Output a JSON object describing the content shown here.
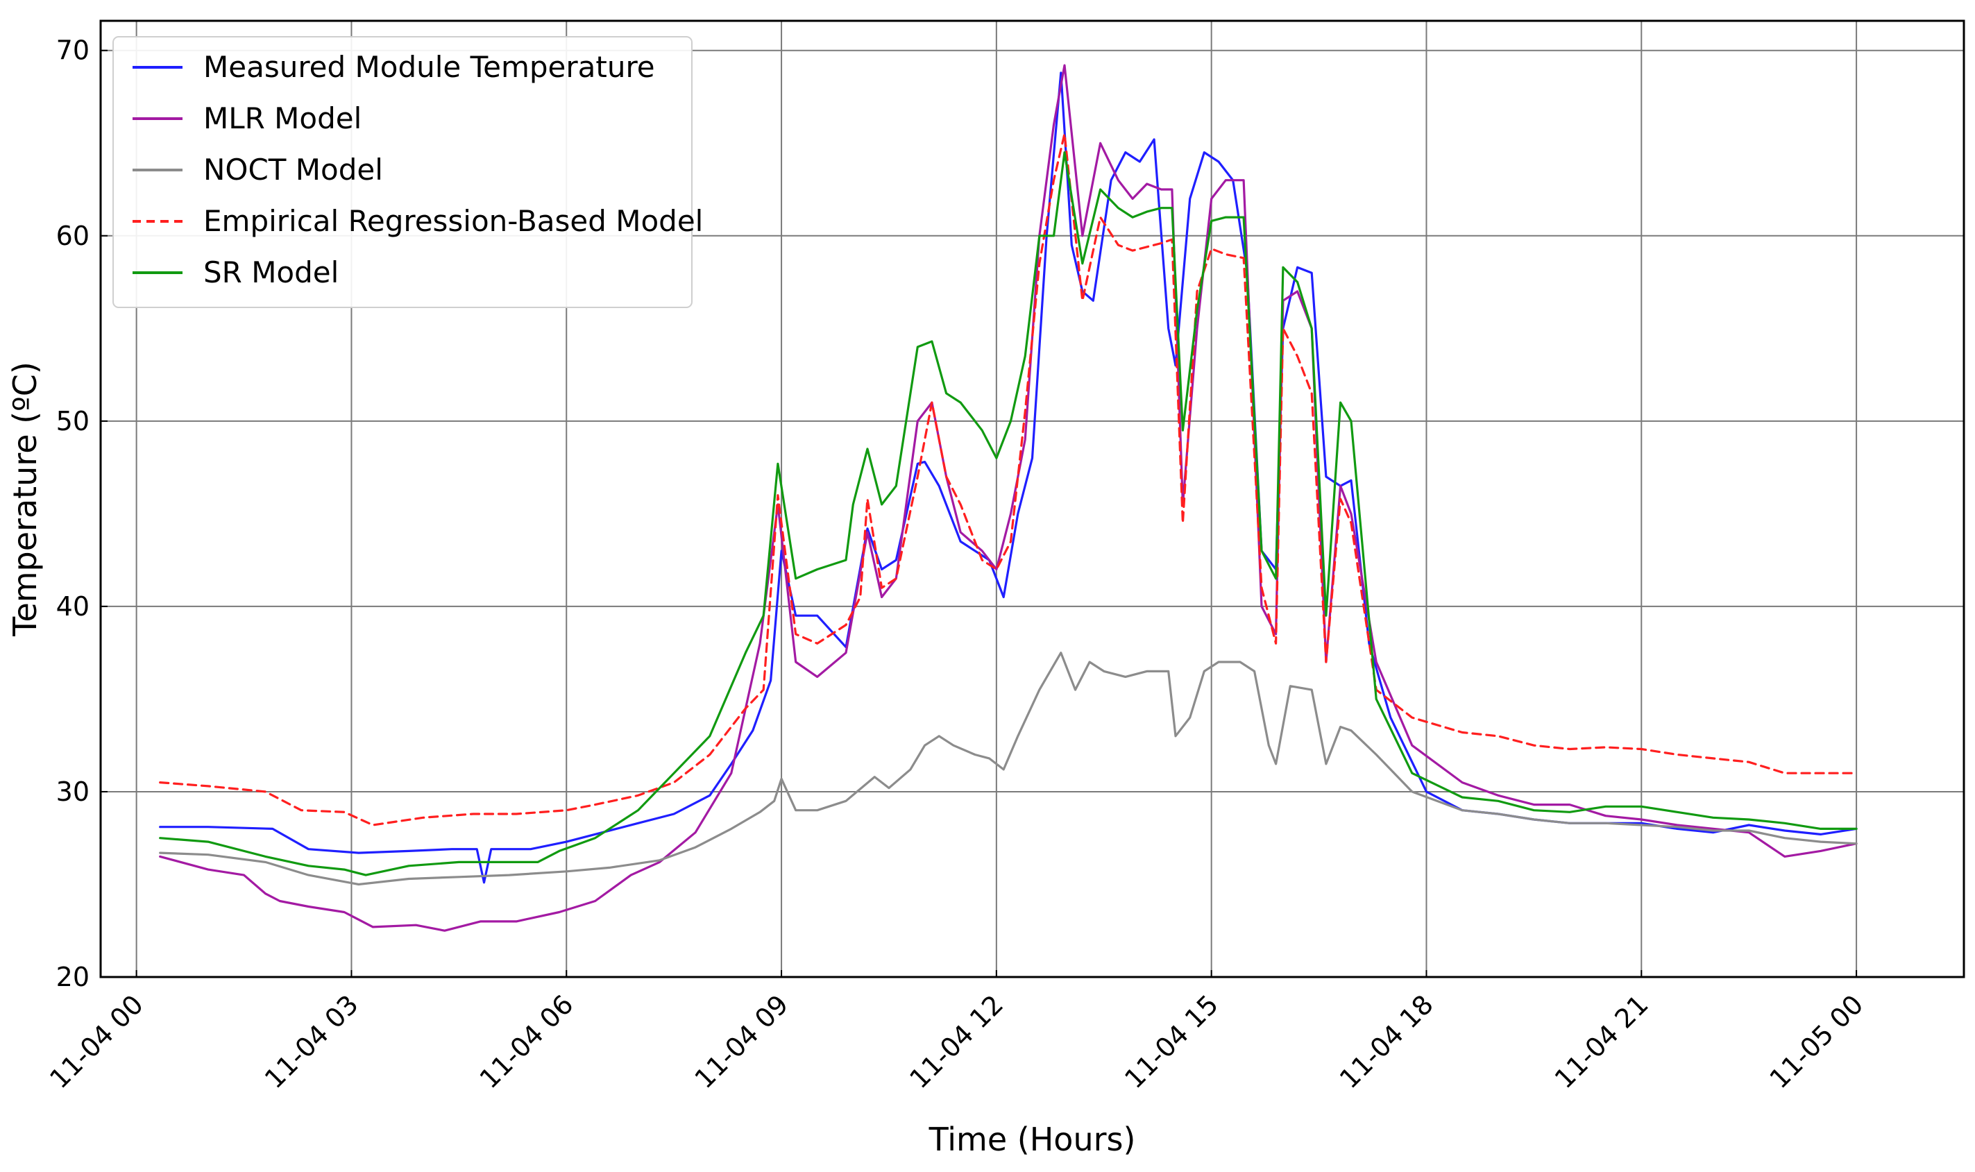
{
  "chart_data": {
    "type": "line",
    "title": "",
    "xlabel": "Time (Hours)",
    "ylabel": "Temperature (ºC)",
    "xlim": [
      -0.5,
      25.5
    ],
    "ylim": [
      20,
      71.6
    ],
    "grid": true,
    "legend_position": "top-left",
    "x_ticks": [
      {
        "value": 0,
        "label": "11-04 00"
      },
      {
        "value": 3,
        "label": "11-04 03"
      },
      {
        "value": 6,
        "label": "11-04 06"
      },
      {
        "value": 9,
        "label": "11-04 09"
      },
      {
        "value": 12,
        "label": "11-04 12"
      },
      {
        "value": 15,
        "label": "11-04 15"
      },
      {
        "value": 18,
        "label": "11-04 18"
      },
      {
        "value": 21,
        "label": "11-04 21"
      },
      {
        "value": 24,
        "label": "11-05 00"
      }
    ],
    "y_ticks": [
      {
        "value": 20,
        "label": "20"
      },
      {
        "value": 30,
        "label": "30"
      },
      {
        "value": 40,
        "label": "40"
      },
      {
        "value": 50,
        "label": "50"
      },
      {
        "value": 60,
        "label": "60"
      },
      {
        "value": 70,
        "label": "70"
      }
    ],
    "series": [
      {
        "name": "Measured Module Temperature",
        "color": "#1f1fff",
        "dash": "solid",
        "x": [
          0.33,
          1.0,
          1.9,
          2.4,
          3.1,
          3.8,
          4.4,
          4.75,
          4.85,
          4.95,
          5.5,
          6.0,
          6.5,
          7.0,
          7.5,
          8.0,
          8.3,
          8.6,
          8.85,
          9.0,
          9.2,
          9.5,
          9.9,
          10.2,
          10.4,
          10.6,
          10.9,
          11.0,
          11.2,
          11.5,
          11.7,
          11.9,
          12.1,
          12.3,
          12.5,
          12.7,
          12.9,
          13.05,
          13.2,
          13.35,
          13.6,
          13.8,
          14.0,
          14.2,
          14.4,
          14.5,
          14.7,
          14.9,
          15.1,
          15.3,
          15.5,
          15.7,
          15.9,
          16.0,
          16.2,
          16.4,
          16.6,
          16.8,
          16.95,
          17.2,
          17.5,
          18.0,
          18.5,
          19.0,
          19.5,
          20.0,
          20.5,
          21.0,
          21.5,
          22.0,
          22.5,
          23.0,
          23.5,
          24.0
        ],
        "values": [
          28.1,
          28.1,
          28.0,
          26.9,
          26.7,
          26.8,
          26.9,
          26.9,
          25.1,
          26.9,
          26.9,
          27.3,
          27.8,
          28.3,
          28.8,
          29.8,
          31.5,
          33.3,
          36.0,
          43.0,
          39.5,
          39.5,
          37.8,
          44.2,
          42.0,
          42.5,
          47.7,
          47.8,
          46.5,
          43.5,
          43.0,
          42.5,
          40.5,
          45.0,
          48.0,
          60.0,
          68.8,
          59.5,
          57.0,
          56.5,
          63.0,
          64.5,
          64.0,
          65.2,
          55.0,
          53.0,
          62.0,
          64.5,
          64.0,
          63.0,
          58.0,
          43.0,
          42.0,
          55.0,
          58.3,
          58.0,
          47.0,
          46.5,
          46.8,
          38.0,
          34.0,
          30.0,
          29.0,
          28.8,
          28.5,
          28.3,
          28.3,
          28.3,
          28.0,
          27.8,
          28.2,
          27.9,
          27.7,
          28.0
        ]
      },
      {
        "name": "MLR Model",
        "color": "#a31aa3",
        "dash": "solid",
        "x": [
          0.33,
          1.0,
          1.5,
          1.8,
          2.0,
          2.4,
          2.9,
          3.3,
          3.9,
          4.3,
          4.8,
          5.3,
          5.9,
          6.4,
          6.9,
          7.3,
          7.8,
          8.3,
          8.7,
          8.95,
          9.2,
          9.5,
          9.9,
          10.2,
          10.4,
          10.6,
          10.9,
          11.1,
          11.3,
          11.5,
          11.8,
          12.0,
          12.2,
          12.4,
          12.6,
          12.8,
          12.95,
          13.2,
          13.45,
          13.7,
          13.9,
          14.1,
          14.3,
          14.45,
          14.6,
          14.8,
          15.0,
          15.2,
          15.45,
          15.7,
          15.9,
          16.0,
          16.2,
          16.4,
          16.6,
          16.8,
          16.95,
          17.3,
          17.8,
          18.5,
          19.0,
          19.5,
          20.0,
          20.5,
          21.0,
          21.5,
          22.0,
          22.5,
          23.0,
          23.5,
          24.0
        ],
        "values": [
          26.5,
          25.8,
          25.5,
          24.5,
          24.1,
          23.8,
          23.5,
          22.7,
          22.8,
          22.5,
          23.0,
          23.0,
          23.5,
          24.1,
          25.5,
          26.2,
          27.8,
          31.0,
          38.0,
          45.5,
          37.0,
          36.2,
          37.5,
          44.0,
          40.5,
          41.5,
          50.0,
          51.0,
          47.0,
          44.0,
          43.0,
          42.0,
          45.0,
          49.0,
          60.0,
          66.0,
          69.2,
          60.0,
          65.0,
          63.0,
          62.0,
          62.8,
          62.5,
          62.5,
          45.5,
          55.0,
          62.0,
          63.0,
          63.0,
          40.0,
          38.5,
          56.5,
          57.0,
          55.0,
          37.0,
          46.5,
          45.0,
          37.0,
          32.5,
          30.5,
          29.8,
          29.3,
          29.3,
          28.7,
          28.5,
          28.2,
          28.0,
          27.8,
          26.5,
          26.8,
          27.2
        ]
      },
      {
        "name": "NOCT Model",
        "color": "#8c8c8c",
        "dash": "solid",
        "x": [
          0.33,
          1.0,
          1.8,
          2.4,
          3.1,
          3.8,
          4.5,
          5.2,
          6.0,
          6.6,
          7.3,
          7.8,
          8.3,
          8.7,
          8.9,
          9.0,
          9.2,
          9.5,
          9.9,
          10.3,
          10.5,
          10.8,
          11.0,
          11.2,
          11.4,
          11.7,
          11.9,
          12.1,
          12.3,
          12.6,
          12.9,
          13.1,
          13.3,
          13.5,
          13.8,
          14.1,
          14.4,
          14.5,
          14.7,
          14.9,
          15.1,
          15.4,
          15.6,
          15.8,
          15.9,
          16.1,
          16.4,
          16.6,
          16.8,
          16.95,
          17.3,
          17.8,
          18.5,
          19.0,
          19.5,
          20.0,
          20.5,
          21.0,
          21.5,
          22.0,
          22.5,
          23.0,
          23.5,
          24.0
        ],
        "values": [
          26.7,
          26.6,
          26.2,
          25.5,
          25.0,
          25.3,
          25.4,
          25.5,
          25.7,
          25.9,
          26.3,
          27.0,
          28.0,
          28.9,
          29.5,
          30.7,
          29.0,
          29.0,
          29.5,
          30.8,
          30.2,
          31.2,
          32.5,
          33.0,
          32.5,
          32.0,
          31.8,
          31.2,
          33.0,
          35.5,
          37.5,
          35.5,
          37.0,
          36.5,
          36.2,
          36.5,
          36.5,
          33.0,
          34.0,
          36.5,
          37.0,
          37.0,
          36.5,
          32.5,
          31.5,
          35.7,
          35.5,
          31.5,
          33.5,
          33.3,
          32.0,
          30.0,
          29.0,
          28.8,
          28.5,
          28.3,
          28.3,
          28.2,
          28.1,
          27.9,
          27.9,
          27.5,
          27.3,
          27.2
        ]
      },
      {
        "name": "Empirical Regression-Based Model",
        "color": "#ff1f1f",
        "dash": "dashed",
        "x": [
          0.33,
          1.0,
          1.8,
          2.3,
          2.9,
          3.3,
          4.0,
          4.7,
          5.3,
          6.0,
          6.4,
          7.0,
          7.5,
          8.0,
          8.5,
          8.75,
          8.95,
          9.2,
          9.5,
          9.9,
          10.1,
          10.2,
          10.4,
          10.6,
          10.9,
          11.1,
          11.3,
          11.5,
          11.8,
          12.0,
          12.2,
          12.4,
          12.6,
          12.8,
          12.95,
          13.2,
          13.45,
          13.7,
          13.9,
          14.1,
          14.3,
          14.45,
          14.6,
          14.8,
          15.0,
          15.2,
          15.45,
          15.7,
          15.9,
          16.0,
          16.2,
          16.4,
          16.6,
          16.8,
          16.95,
          17.3,
          17.8,
          18.5,
          19.0,
          19.5,
          20.0,
          20.5,
          21.0,
          21.5,
          22.0,
          22.5,
          23.0,
          23.5,
          24.0
        ],
        "values": [
          30.5,
          30.3,
          30.0,
          29.0,
          28.9,
          28.2,
          28.6,
          28.8,
          28.8,
          29.0,
          29.3,
          29.8,
          30.5,
          32.0,
          34.5,
          35.5,
          46.0,
          38.5,
          38.0,
          39.0,
          40.5,
          45.8,
          41.0,
          41.5,
          47.0,
          51.0,
          47.0,
          45.5,
          42.5,
          42.0,
          43.5,
          50.5,
          58.5,
          63.0,
          65.5,
          56.5,
          61.0,
          59.5,
          59.2,
          59.4,
          59.6,
          59.8,
          44.5,
          57.0,
          59.3,
          59.0,
          58.8,
          41.0,
          38.0,
          55.0,
          53.5,
          51.5,
          37.0,
          45.8,
          44.5,
          35.5,
          34.0,
          33.2,
          33.0,
          32.5,
          32.3,
          32.4,
          32.3,
          32.0,
          31.8,
          31.6,
          31.0,
          31.0,
          31.0
        ]
      },
      {
        "name": "SR Model",
        "color": "#119a11",
        "dash": "solid",
        "x": [
          0.33,
          1.0,
          1.8,
          2.4,
          2.9,
          3.2,
          3.8,
          4.5,
          5.2,
          5.6,
          5.9,
          6.4,
          7.0,
          7.5,
          8.0,
          8.5,
          8.75,
          8.95,
          9.2,
          9.5,
          9.9,
          10.0,
          10.2,
          10.4,
          10.6,
          10.9,
          11.1,
          11.3,
          11.5,
          11.8,
          12.0,
          12.2,
          12.4,
          12.6,
          12.8,
          12.95,
          13.2,
          13.45,
          13.7,
          13.9,
          14.1,
          14.3,
          14.45,
          14.6,
          14.8,
          15.0,
          15.2,
          15.45,
          15.7,
          15.9,
          16.0,
          16.2,
          16.4,
          16.6,
          16.8,
          16.95,
          17.3,
          17.8,
          18.5,
          19.0,
          19.5,
          20.0,
          20.5,
          21.0,
          21.5,
          22.0,
          22.5,
          23.0,
          23.5,
          24.0
        ],
        "values": [
          27.5,
          27.3,
          26.5,
          26.0,
          25.8,
          25.5,
          26.0,
          26.2,
          26.2,
          26.2,
          26.8,
          27.5,
          29.0,
          31.0,
          33.0,
          37.5,
          39.5,
          47.7,
          41.5,
          42.0,
          42.5,
          45.5,
          48.5,
          45.5,
          46.5,
          54.0,
          54.3,
          51.5,
          51.0,
          49.5,
          48.0,
          50.0,
          53.5,
          60.0,
          60.0,
          64.5,
          58.5,
          62.5,
          61.5,
          61.0,
          61.3,
          61.5,
          61.5,
          49.5,
          56.0,
          60.8,
          61.0,
          61.0,
          43.0,
          41.5,
          58.3,
          57.5,
          55.0,
          39.5,
          51.0,
          50.0,
          35.0,
          31.0,
          29.7,
          29.5,
          29.0,
          28.9,
          29.2,
          29.2,
          28.9,
          28.6,
          28.5,
          28.3,
          28.0,
          28.0
        ]
      }
    ]
  }
}
